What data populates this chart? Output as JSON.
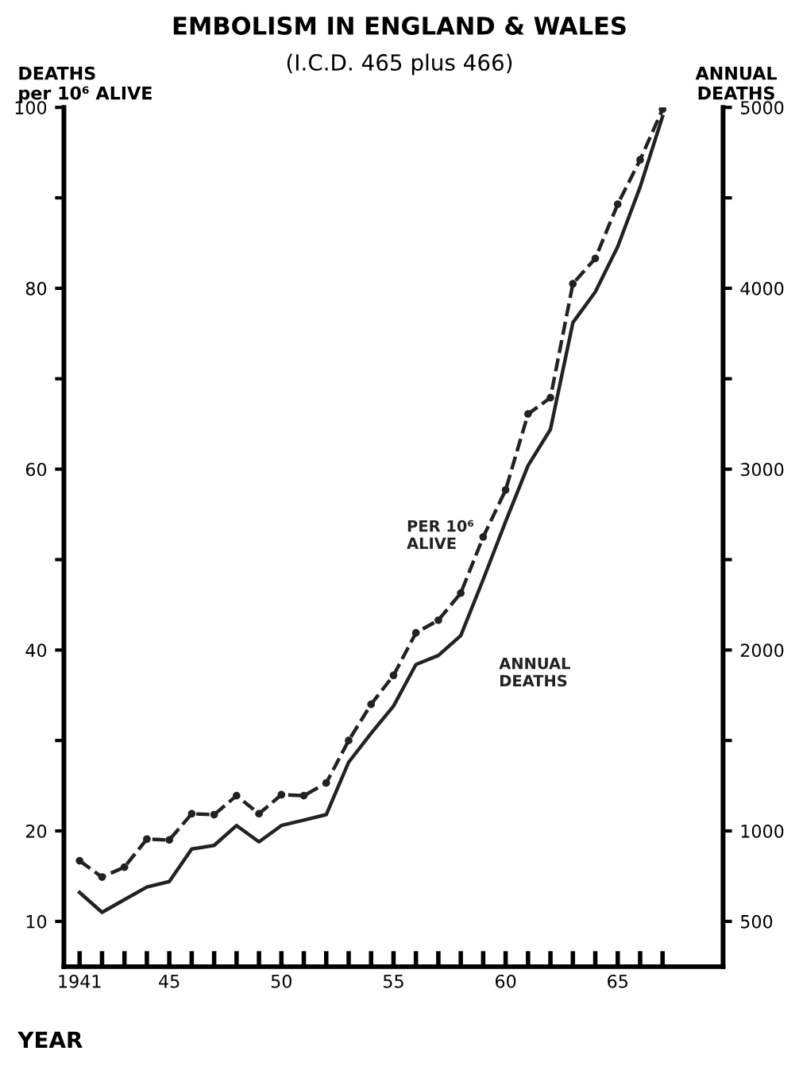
{
  "chart_data": {
    "type": "line",
    "title": "EMBOLISM IN ENGLAND & WALES",
    "subtitle": "(I.C.D. 465 plus 466)",
    "xlabel": "YEAR",
    "ylabel": "DEATHS\nper 10⁶ ALIVE",
    "y2label": "ANNUAL\nDEATHS",
    "x": [
      1941,
      1942,
      1943,
      1944,
      1945,
      1946,
      1947,
      1948,
      1949,
      1950,
      1951,
      1952,
      1953,
      1954,
      1955,
      1956,
      1957,
      1958,
      1959,
      1960,
      1961,
      1962,
      1963,
      1964,
      1965,
      1966,
      1967
    ],
    "series": [
      {
        "name": "PER 10⁶\nALIVE",
        "color": "#222222",
        "line_style": "dashed",
        "marker": "circle",
        "values": [
          16.7,
          14.9,
          16.0,
          19.1,
          19.0,
          21.9,
          21.8,
          23.9,
          21.9,
          24.0,
          23.9,
          25.3,
          30.0,
          34.0,
          37.2,
          41.9,
          43.3,
          46.3,
          52.5,
          57.7,
          66.1,
          67.9,
          80.5,
          83.3,
          89.3,
          94.2,
          99.8
        ]
      },
      {
        "name": "ANNUAL\nDEATHS",
        "color": "#222222",
        "line_style": "solid",
        "marker": "none",
        "axis": "y2",
        "values": [
          660,
          550,
          620,
          690,
          720,
          900,
          920,
          1030,
          940,
          1030,
          1060,
          1090,
          1380,
          1540,
          1690,
          1920,
          1970,
          2080,
          2390,
          2710,
          3020,
          3220,
          3810,
          3980,
          4230,
          4560,
          4950
        ]
      }
    ],
    "xlim": [
      1940.3,
      1969.7
    ],
    "xticks": [
      {
        "value": 1941,
        "label": "1941"
      },
      {
        "value": 1942,
        "label": null
      },
      {
        "value": 1943,
        "label": null
      },
      {
        "value": 1944,
        "label": null
      },
      {
        "value": 1945,
        "label": "45"
      },
      {
        "value": 1946,
        "label": null
      },
      {
        "value": 1947,
        "label": null
      },
      {
        "value": 1948,
        "label": null
      },
      {
        "value": 1949,
        "label": null
      },
      {
        "value": 1950,
        "label": "50"
      },
      {
        "value": 1951,
        "label": null
      },
      {
        "value": 1952,
        "label": null
      },
      {
        "value": 1953,
        "label": null
      },
      {
        "value": 1954,
        "label": null
      },
      {
        "value": 1955,
        "label": "55"
      },
      {
        "value": 1956,
        "label": null
      },
      {
        "value": 1957,
        "label": null
      },
      {
        "value": 1958,
        "label": null
      },
      {
        "value": 1959,
        "label": null
      },
      {
        "value": 1960,
        "label": "60"
      },
      {
        "value": 1961,
        "label": null
      },
      {
        "value": 1962,
        "label": null
      },
      {
        "value": 1963,
        "label": null
      },
      {
        "value": 1964,
        "label": null
      },
      {
        "value": 1965,
        "label": "65"
      },
      {
        "value": 1966,
        "label": null
      },
      {
        "value": 1967,
        "label": null
      }
    ],
    "ylim": [
      5,
      100
    ],
    "yticks": [
      10,
      20,
      {
        "value": 30,
        "label": null
      },
      40,
      {
        "value": 50,
        "label": null
      },
      60,
      {
        "value": 70,
        "label": null
      },
      80,
      {
        "value": 90,
        "label": null
      },
      100
    ],
    "y2lim": [
      250,
      5000
    ],
    "y2ticks": [
      500,
      1000,
      {
        "value": 1500,
        "label": null
      },
      2000,
      {
        "value": 2500,
        "label": null
      },
      3000,
      {
        "value": 3500,
        "label": null
      },
      4000,
      {
        "value": 4500,
        "label": null
      },
      5000
    ],
    "grid": false,
    "legend": false
  }
}
